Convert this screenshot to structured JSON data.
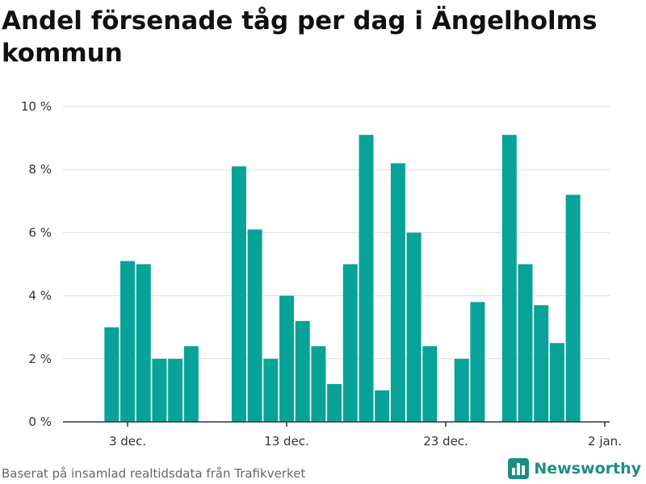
{
  "title": "Andel försenade tåg per dag i Ängelholms kommun",
  "footer": {
    "source": "Baserat på insamlad realtidsdata från Trafikverket",
    "brand": "Newsworthy",
    "brand_icon": "bar-chart-logo-icon"
  },
  "colors": {
    "bar": "#07a398",
    "axis": "#333333",
    "grid": "#dddddd",
    "brand": "#1d8c85"
  },
  "chart_data": {
    "type": "bar",
    "x": [
      "2023-12-02",
      "2023-12-03",
      "2023-12-04",
      "2023-12-05",
      "2023-12-06",
      "2023-12-07",
      "2023-12-08",
      "2023-12-09",
      "2023-12-10",
      "2023-12-11",
      "2023-12-12",
      "2023-12-13",
      "2023-12-14",
      "2023-12-15",
      "2023-12-16",
      "2023-12-17",
      "2023-12-18",
      "2023-12-19",
      "2023-12-20",
      "2023-12-21",
      "2023-12-22",
      "2023-12-23",
      "2023-12-24",
      "2023-12-25",
      "2023-12-26",
      "2023-12-27",
      "2023-12-28",
      "2023-12-29",
      "2023-12-30",
      "2023-12-31"
    ],
    "values": [
      3.0,
      5.1,
      5.0,
      2.0,
      2.0,
      2.4,
      null,
      null,
      8.1,
      6.1,
      2.0,
      4.0,
      3.2,
      2.4,
      1.2,
      5.0,
      9.1,
      1.0,
      8.2,
      6.0,
      2.4,
      null,
      2.0,
      3.8,
      null,
      9.1,
      5.0,
      3.7,
      2.5,
      7.2
    ],
    "title": "Andel försenade tåg per dag i Ängelholms kommun",
    "xlabel": "",
    "ylabel": "",
    "ylim": [
      0,
      10
    ],
    "yticks": [
      0,
      2,
      4,
      6,
      8,
      10
    ],
    "ytick_labels": [
      "0 %",
      "2 %",
      "4 %",
      "6 %",
      "8 %",
      "10 %"
    ],
    "xticks": [
      "2023-12-03",
      "2023-12-13",
      "2023-12-23",
      "2024-01-02"
    ],
    "xtick_labels": [
      "3 dec.",
      "13 dec.",
      "23 dec.",
      "2 jan."
    ],
    "grid": true
  }
}
